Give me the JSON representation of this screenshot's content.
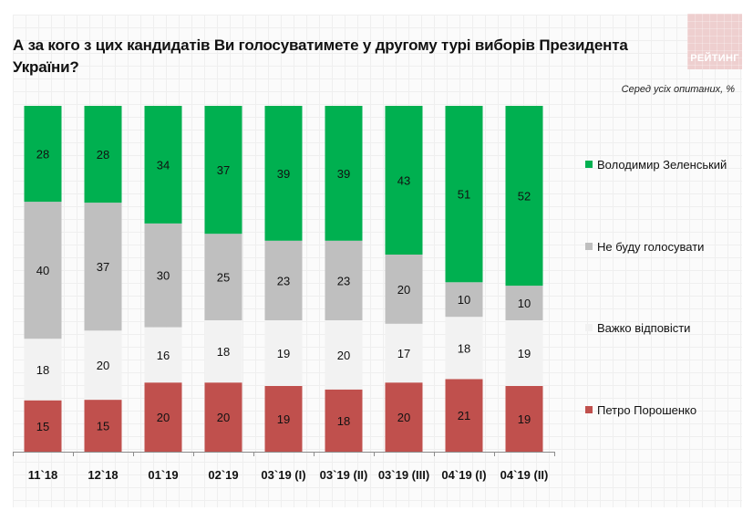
{
  "header": {
    "title": "А за кого з цих кандидатів Ви голосуватимете у другому турі виборів Президента України?",
    "subtitle": "Серед усіх опитаних, %",
    "logo_text": "РЕЙТИНГ"
  },
  "chart_data": {
    "type": "bar",
    "stacked": true,
    "normalized": true,
    "title": "А за кого з цих кандидатів Ви голосуватимете у другому турі виборів Президента України?",
    "subtitle": "Серед усіх опитаних, %",
    "xlabel": "",
    "ylabel": "",
    "legend_position": "right",
    "grid": false,
    "categories": [
      "11`18",
      "12`18",
      "01`19",
      "02`19",
      "03`19 (I)",
      "03`19 (II)",
      "03`19 (III)",
      "04`19 (I)",
      "04`19 (II)"
    ],
    "series": [
      {
        "name": "Петро Порошенко",
        "color": "#c0504d",
        "values": [
          15,
          15,
          20,
          20,
          19,
          18,
          20,
          21,
          19
        ]
      },
      {
        "name": "Важко відповісти",
        "color": "#f2f2f2",
        "values": [
          18,
          20,
          16,
          18,
          19,
          20,
          17,
          18,
          19
        ]
      },
      {
        "name": "Не буду голосувати",
        "color": "#bfbfbf",
        "values": [
          40,
          37,
          30,
          25,
          23,
          23,
          20,
          10,
          10
        ]
      },
      {
        "name": "Володимир Зеленський",
        "color": "#00b050",
        "values": [
          28,
          28,
          34,
          37,
          39,
          39,
          43,
          51,
          52
        ]
      }
    ],
    "legend_order": [
      "Володимир Зеленський",
      "Не буду голосувати",
      "Важко відповісти",
      "Петро Порошенко"
    ]
  }
}
